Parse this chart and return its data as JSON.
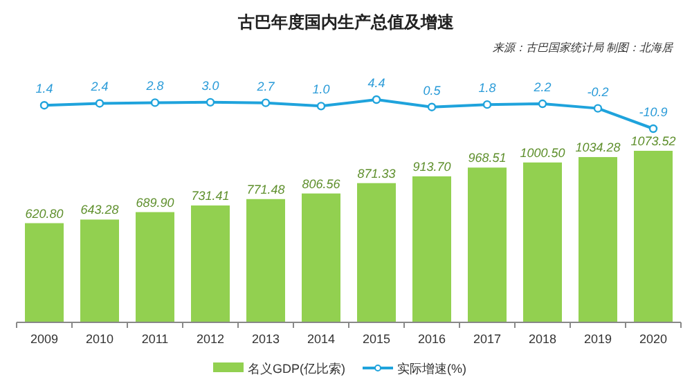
{
  "chart_data": [
    {
      "type": "line",
      "title": "古巴年度国内生产总值及增速",
      "annotations": [
        "来源：古巴国家统计局 制图：北海居"
      ],
      "categories": [
        "2009",
        "2010",
        "2011",
        "2012",
        "2013",
        "2014",
        "2015",
        "2016",
        "2017",
        "2018",
        "2019",
        "2020"
      ],
      "series": [
        {
          "name": "实际增速(%)",
          "color": "#1fa3dc",
          "values": [
            1.4,
            2.4,
            2.8,
            3.0,
            2.7,
            1.0,
            4.4,
            0.5,
            1.8,
            2.2,
            -0.2,
            -10.9
          ],
          "value_labels": [
            "1.4",
            "2.4",
            "2.8",
            "3.0",
            "2.7",
            "1.0",
            "4.4",
            "0.5",
            "1.8",
            "2.2",
            "-0.2",
            "-10.9"
          ]
        }
      ],
      "marker": "circle",
      "legend": "bottom",
      "tick_labels": false
    },
    {
      "type": "bar",
      "categories": [
        "2009",
        "2010",
        "2011",
        "2012",
        "2013",
        "2014",
        "2015",
        "2016",
        "2017",
        "2018",
        "2019",
        "2020"
      ],
      "series": [
        {
          "name": "名义GDP(亿比索)",
          "color": "#92d050",
          "values": [
            620.8,
            643.28,
            689.9,
            731.41,
            771.48,
            806.56,
            871.33,
            913.7,
            968.51,
            1000.5,
            1034.28,
            1073.52
          ],
          "value_labels": [
            "620.80",
            "643.28",
            "689.90",
            "731.41",
            "771.48",
            "806.56",
            "871.33",
            "913.70",
            "968.51",
            "1000.50",
            "1034.28",
            "1073.52"
          ]
        }
      ],
      "legend": "bottom",
      "tick_labels": "x"
    }
  ]
}
